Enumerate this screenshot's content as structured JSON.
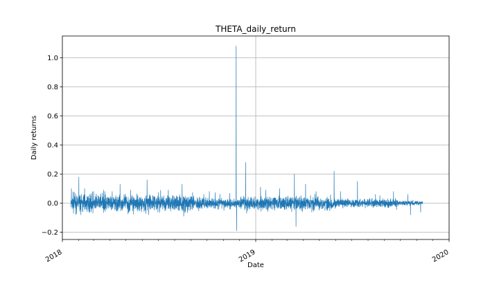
{
  "chart_data": {
    "type": "line",
    "title": "THETA_daily_return",
    "xlabel": "Date",
    "ylabel": "Daily returns",
    "xlim": [
      "2018-01-01",
      "2020-01-01"
    ],
    "ylim": [
      -0.25,
      1.15
    ],
    "x_ticks": [
      "2018",
      "2019",
      "2020"
    ],
    "y_ticks": [
      -0.2,
      0.0,
      0.2,
      0.4,
      0.6,
      0.8,
      1.0
    ],
    "y_tick_labels": [
      "−0.2",
      "0.0",
      "0.2",
      "0.4",
      "0.6",
      "0.8",
      "1.0"
    ],
    "grid": true,
    "legend": "none",
    "series": [
      {
        "color": "#1f77b4",
        "date_range": [
          "2018-01-17",
          "2019-11-12"
        ],
        "interval": "hourly",
        "approx_values": [
          {
            "x": "2018-01-18",
            "y": 0.1
          },
          {
            "x": "2018-01-22",
            "y": -0.07
          },
          {
            "x": "2018-02-01",
            "y": 0.18
          },
          {
            "x": "2018-02-05",
            "y": -0.08
          },
          {
            "x": "2018-02-12",
            "y": 0.1
          },
          {
            "x": "2018-03-01",
            "y": 0.08
          },
          {
            "x": "2018-03-20",
            "y": 0.09
          },
          {
            "x": "2018-04-05",
            "y": 0.08
          },
          {
            "x": "2018-04-20",
            "y": 0.13
          },
          {
            "x": "2018-05-10",
            "y": 0.09
          },
          {
            "x": "2018-06-10",
            "y": 0.16
          },
          {
            "x": "2018-06-13",
            "y": -0.08
          },
          {
            "x": "2018-07-20",
            "y": 0.09
          },
          {
            "x": "2018-08-15",
            "y": 0.13
          },
          {
            "x": "2018-08-18",
            "y": -0.09
          },
          {
            "x": "2018-09-25",
            "y": 0.06
          },
          {
            "x": "2018-11-25",
            "y": 1.08
          },
          {
            "x": "2018-11-26",
            "y": -0.19
          },
          {
            "x": "2018-12-13",
            "y": 0.28
          },
          {
            "x": "2018-12-15",
            "y": -0.07
          },
          {
            "x": "2019-01-10",
            "y": 0.11
          },
          {
            "x": "2019-01-20",
            "y": 0.09
          },
          {
            "x": "2019-02-15",
            "y": 0.1
          },
          {
            "x": "2019-03-15",
            "y": 0.2
          },
          {
            "x": "2019-03-18",
            "y": -0.16
          },
          {
            "x": "2019-04-05",
            "y": 0.13
          },
          {
            "x": "2019-04-25",
            "y": 0.08
          },
          {
            "x": "2019-05-29",
            "y": 0.22
          },
          {
            "x": "2019-06-10",
            "y": 0.08
          },
          {
            "x": "2019-07-12",
            "y": 0.15
          },
          {
            "x": "2019-08-15",
            "y": 0.06
          },
          {
            "x": "2019-09-18",
            "y": 0.08
          },
          {
            "x": "2019-10-15",
            "y": 0.06
          },
          {
            "x": "2019-10-20",
            "y": -0.08
          },
          {
            "x": "2019-11-10",
            "y": 0.01
          }
        ]
      }
    ]
  }
}
